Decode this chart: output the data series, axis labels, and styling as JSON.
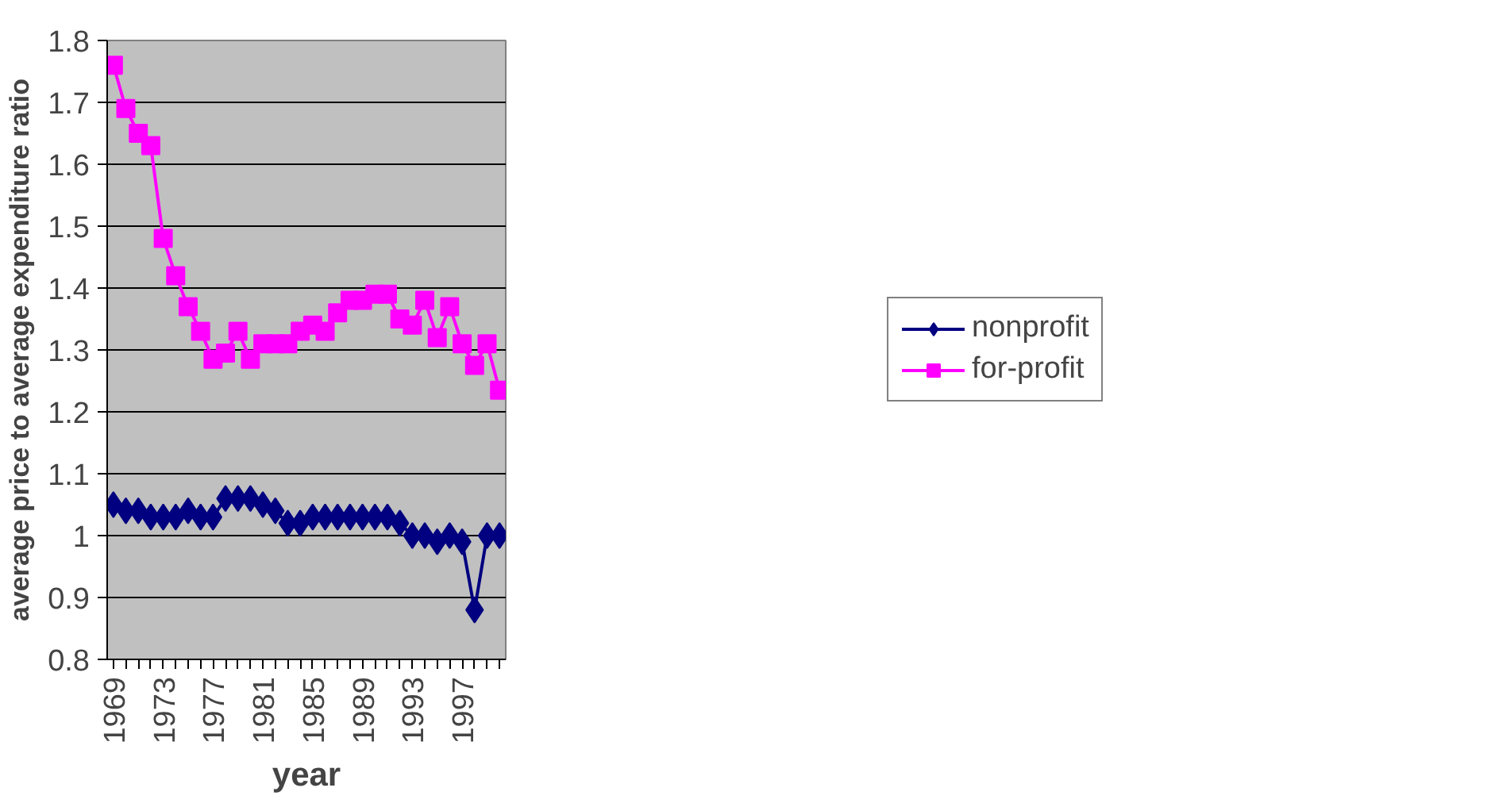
{
  "chart_data": {
    "type": "line",
    "xlabel": "year",
    "ylabel": "average price to average expenditure ratio",
    "categories": [
      "1969",
      null,
      null,
      null,
      "1973",
      null,
      null,
      null,
      "1977",
      null,
      null,
      null,
      "1981",
      null,
      null,
      null,
      "1985",
      null,
      null,
      null,
      "1989",
      null,
      null,
      null,
      "1993",
      null,
      null,
      null,
      "1997",
      null,
      null,
      null
    ],
    "series": [
      {
        "name": "nonprofit",
        "color": "#000080",
        "marker": "diamond",
        "values": [
          1.05,
          1.04,
          1.04,
          1.03,
          1.03,
          1.03,
          1.04,
          1.03,
          1.03,
          1.06,
          1.06,
          1.06,
          1.05,
          1.04,
          1.02,
          1.02,
          1.03,
          1.03,
          1.03,
          1.03,
          1.03,
          1.03,
          1.03,
          1.02,
          1.0,
          1.0,
          0.99,
          1.0,
          0.99,
          0.88,
          1.0,
          1.0
        ]
      },
      {
        "name": "for-profit",
        "color": "#ff00ff",
        "marker": "square",
        "values": [
          1.76,
          1.69,
          1.65,
          1.63,
          1.48,
          1.42,
          1.37,
          1.33,
          1.285,
          1.295,
          1.33,
          1.285,
          1.31,
          1.31,
          1.31,
          1.33,
          1.34,
          1.33,
          1.36,
          1.38,
          1.38,
          1.39,
          1.39,
          1.35,
          1.34,
          1.38,
          1.32,
          1.37,
          1.31,
          1.275,
          1.31,
          1.235
        ]
      }
    ],
    "ylim": [
      0.8,
      1.8
    ],
    "yticks": [
      0.8,
      0.9,
      1,
      1.1,
      1.2,
      1.3,
      1.4,
      1.5,
      1.6,
      1.7,
      1.8
    ],
    "grid": "y",
    "legend": "right",
    "line_style": "solid"
  }
}
